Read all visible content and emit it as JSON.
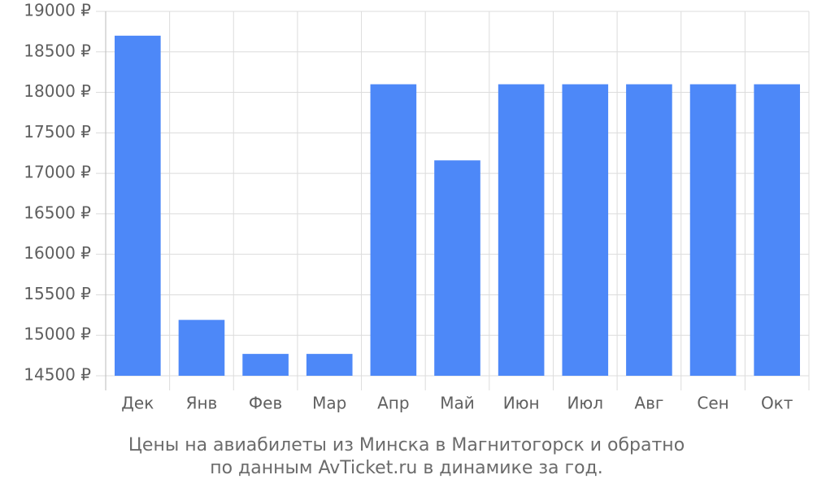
{
  "chart_data": {
    "type": "bar",
    "title": "Цены на авиабилеты из Минска в Магнитогорск и обратно",
    "subtitle": "по данным AvTicket.ru в динамике за год.",
    "categories": [
      "Дек",
      "Янв",
      "Фев",
      "Мар",
      "Апр",
      "Май",
      "Июн",
      "Июл",
      "Авг",
      "Сен",
      "Окт"
    ],
    "values": [
      18700,
      15190,
      14770,
      14770,
      18100,
      17160,
      18100,
      18100,
      18100,
      18100,
      18100
    ],
    "color": "#4d88f8",
    "ylim": [
      14500,
      19000
    ],
    "yticks": [
      {
        "value": 14500,
        "label": "14500 ₽"
      },
      {
        "value": 15000,
        "label": "15000 ₽"
      },
      {
        "value": 15500,
        "label": "15500 ₽"
      },
      {
        "value": 16000,
        "label": "16000 ₽"
      },
      {
        "value": 16500,
        "label": "16500 ₽"
      },
      {
        "value": 17000,
        "label": "17000 ₽"
      },
      {
        "value": 17500,
        "label": "17500 ₽"
      },
      {
        "value": 18000,
        "label": "18000 ₽"
      },
      {
        "value": 18500,
        "label": "18500 ₽"
      },
      {
        "value": 19000,
        "label": "19000 ₽"
      }
    ],
    "grid": true
  }
}
